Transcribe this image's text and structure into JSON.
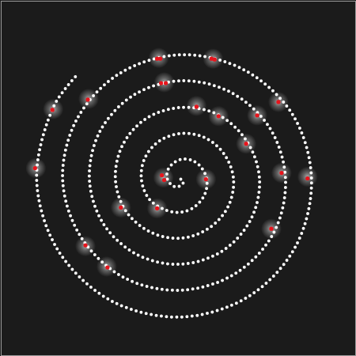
{
  "chart_data": {
    "type": "scatter",
    "xlim": [
      0,
      450
    ],
    "ylim": [
      450,
      0
    ],
    "tick_labels": false,
    "grid": false,
    "series": [
      {
        "type": "spot",
        "color": "#d8d8d8",
        "x": [
          200,
          269,
          207,
          352,
          66,
          111,
          248,
          276,
          325,
          311,
          44,
          356,
          389,
          260,
          206,
          152,
          198,
          343,
          107,
          134
        ],
        "y": [
          72,
          73,
          103,
          128,
          137,
          124,
          133,
          146,
          145,
          181,
          212,
          218,
          223,
          226,
          224,
          262,
          263,
          289,
          311,
          337
        ]
      },
      {
        "type": "line",
        "line_style": "dotted",
        "color": "#ffffff",
        "x": [
          228,
          230,
          231,
          228,
          222,
          216,
          211,
          211,
          217,
          228,
          242,
          254,
          261,
          259,
          247,
          228,
          206,
          187,
          178,
          182,
          200,
          228,
          258,
          283,
          295,
          288,
          264,
          228,
          189,
          158,
          145,
          154,
          184,
          228,
          275,
          312,
          328,
          317,
          281,
          228,
          173,
          130,
          112,
          125,
          167,
          228,
          292,
          341,
          361,
          346,
          297,
          228,
          156,
          101,
          78,
          96,
          150,
          228,
          308,
          370,
          394,
          374,
          314,
          228,
          139,
          72,
          45,
          67,
          96
        ],
        "y": [
          226,
          227,
          231,
          234,
          236,
          233,
          226,
          216,
          207,
          201,
          202,
          211,
          226,
          244,
          260,
          268,
          264,
          250,
          226,
          200,
          178,
          168,
          173,
          194,
          226,
          261,
          288,
          301,
          293,
          266,
          226,
          183,
          149,
          135,
          144,
          178,
          226,
          277,
          317,
          334,
          322,
          283,
          226,
          166,
          120,
          101,
          116,
          161,
          226,
          294,
          346,
          367,
          351,
          299,
          226,
          150,
          92,
          68,
          87,
          144,
          226,
          311,
          375,
          401,
          380,
          316,
          226,
          133,
          94
        ]
      },
      {
        "type": "scatter",
        "marker": "dot",
        "color": "#e8141c",
        "x": [
          198,
          202,
          267,
          271,
          203,
          209,
          352,
          65,
          110,
          248,
          276,
          325,
          311,
          43,
          356,
          389,
          260,
          204,
          207,
          152,
          198,
          343,
          107,
          135
        ],
        "y": [
          73,
          73,
          73,
          74,
          104,
          104,
          128,
          138,
          125,
          134,
          146,
          145,
          181,
          212,
          218,
          225,
          226,
          221,
          227,
          262,
          263,
          289,
          310,
          338
        ]
      }
    ]
  }
}
